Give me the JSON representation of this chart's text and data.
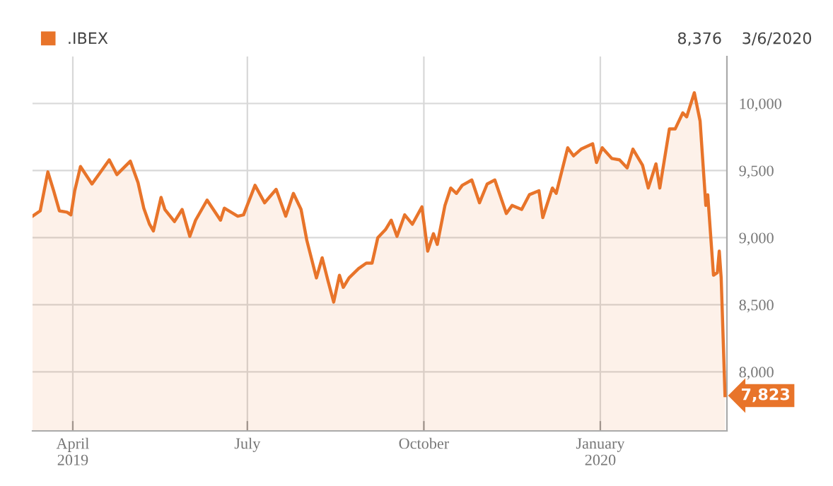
{
  "chart_data": {
    "type": "area",
    "x": [
      "2019-03-11",
      "2019-03-15",
      "2019-03-19",
      "2019-03-22",
      "2019-03-25",
      "2019-03-29",
      "2019-03-31",
      "2019-04-02",
      "2019-04-05",
      "2019-04-11",
      "2019-04-20",
      "2019-04-24",
      "2019-05-01",
      "2019-05-05",
      "2019-05-08",
      "2019-05-11",
      "2019-05-13",
      "2019-05-17",
      "2019-05-19",
      "2019-05-24",
      "2019-05-28",
      "2019-06-01",
      "2019-06-04",
      "2019-06-10",
      "2019-06-17",
      "2019-06-19",
      "2019-06-26",
      "2019-06-29",
      "2019-07-05",
      "2019-07-10",
      "2019-07-16",
      "2019-07-21",
      "2019-07-25",
      "2019-07-29",
      "2019-08-01",
      "2019-08-06",
      "2019-08-09",
      "2019-08-12",
      "2019-08-15",
      "2019-08-18",
      "2019-08-20",
      "2019-08-23",
      "2019-08-28",
      "2019-09-01",
      "2019-09-04",
      "2019-09-07",
      "2019-09-11",
      "2019-09-14",
      "2019-09-17",
      "2019-09-21",
      "2019-09-25",
      "2019-09-30",
      "2019-10-03",
      "2019-10-06",
      "2019-10-08",
      "2019-10-12",
      "2019-10-15",
      "2019-10-18",
      "2019-10-21",
      "2019-10-26",
      "2019-10-30",
      "2019-11-03",
      "2019-11-07",
      "2019-11-13",
      "2019-11-16",
      "2019-11-21",
      "2019-11-25",
      "2019-11-30",
      "2019-12-02",
      "2019-12-07",
      "2019-12-09",
      "2019-12-15",
      "2019-12-18",
      "2019-12-22",
      "2019-12-28",
      "2019-12-30",
      "2020-01-02",
      "2020-01-07",
      "2020-01-11",
      "2020-01-15",
      "2020-01-18",
      "2020-01-23",
      "2020-01-26",
      "2020-01-30",
      "2020-02-01",
      "2020-02-06",
      "2020-02-09",
      "2020-02-13",
      "2020-02-15",
      "2020-02-19",
      "2020-02-22",
      "2020-02-25",
      "2020-02-26",
      "2020-02-29",
      "2020-03-02",
      "2020-03-03",
      "2020-03-04",
      "2020-03-06"
    ],
    "series": [
      {
        "name": ".IBEX",
        "color": "#e8742a",
        "values": [
          9160,
          9200,
          9490,
          9350,
          9200,
          9190,
          9170,
          9350,
          9530,
          9400,
          9580,
          9470,
          9570,
          9410,
          9220,
          9100,
          9050,
          9300,
          9210,
          9120,
          9210,
          9010,
          9130,
          9280,
          9130,
          9220,
          9160,
          9170,
          9390,
          9260,
          9360,
          9160,
          9330,
          9210,
          8980,
          8700,
          8850,
          8680,
          8520,
          8720,
          8630,
          8700,
          8770,
          8810,
          8810,
          9000,
          9060,
          9130,
          9010,
          9170,
          9100,
          9230,
          8900,
          9030,
          8950,
          9240,
          9370,
          9330,
          9390,
          9430,
          9260,
          9400,
          9430,
          9180,
          9240,
          9210,
          9320,
          9350,
          9150,
          9370,
          9330,
          9670,
          9610,
          9660,
          9700,
          9560,
          9670,
          9590,
          9580,
          9520,
          9660,
          9540,
          9370,
          9550,
          9370,
          9810,
          9810,
          9930,
          9900,
          10080,
          9870,
          9240,
          9320,
          8720,
          8740,
          8900,
          8700,
          7823
        ]
      }
    ],
    "xlim": [
      "2019-03-11",
      "2020-03-07"
    ],
    "xticks": [
      {
        "value": "2019-04-01",
        "label": "April\n2019"
      },
      {
        "value": "2019-07-01",
        "label": "July"
      },
      {
        "value": "2019-10-01",
        "label": "October"
      },
      {
        "value": "2020-01-01",
        "label": "January\n2020"
      }
    ],
    "ylim": [
      7560,
      10350
    ],
    "yticks": [
      {
        "value": 8000,
        "label": "8,000"
      },
      {
        "value": 8500,
        "label": "8,500"
      },
      {
        "value": 9000,
        "label": "9,000"
      },
      {
        "value": 9500,
        "label": "9,500"
      },
      {
        "value": 10000,
        "label": "10,000"
      }
    ],
    "grid": true,
    "legend": "top left",
    "annotations": [
      "8,376",
      "3/6/2020",
      {
        "text": "7,823",
        "x": "2020-03-06",
        "y": 7823
      }
    ]
  }
}
